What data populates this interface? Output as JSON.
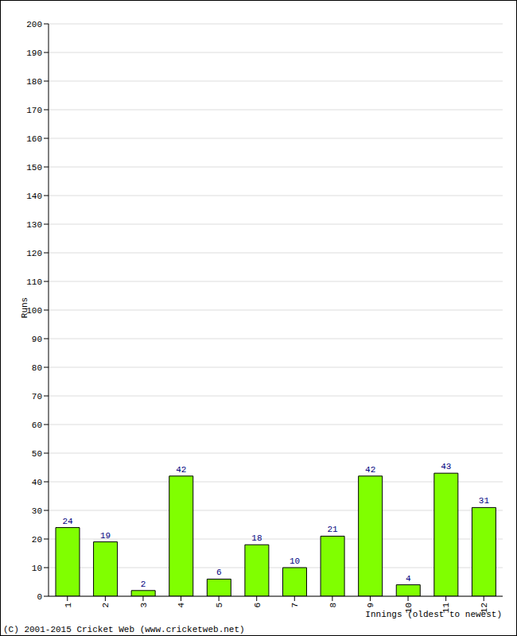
{
  "chart_data": {
    "type": "bar",
    "categories": [
      "1",
      "2",
      "3",
      "4",
      "5",
      "6",
      "7",
      "8",
      "9",
      "10",
      "11",
      "12"
    ],
    "values": [
      24,
      19,
      2,
      42,
      6,
      18,
      10,
      21,
      42,
      4,
      43,
      31
    ],
    "color": "#80ff00",
    "ylim": [
      0,
      200
    ],
    "yticks": [
      0,
      10,
      20,
      30,
      40,
      50,
      60,
      70,
      80,
      90,
      100,
      110,
      120,
      130,
      140,
      150,
      160,
      170,
      180,
      190,
      200
    ],
    "grid": true,
    "data_labels": true,
    "x_label": "Innings (oldest to newest)",
    "y_label": "Runs",
    "annotation": "(C) 2001-2015 Cricket Web (www.cricketweb.net)"
  }
}
